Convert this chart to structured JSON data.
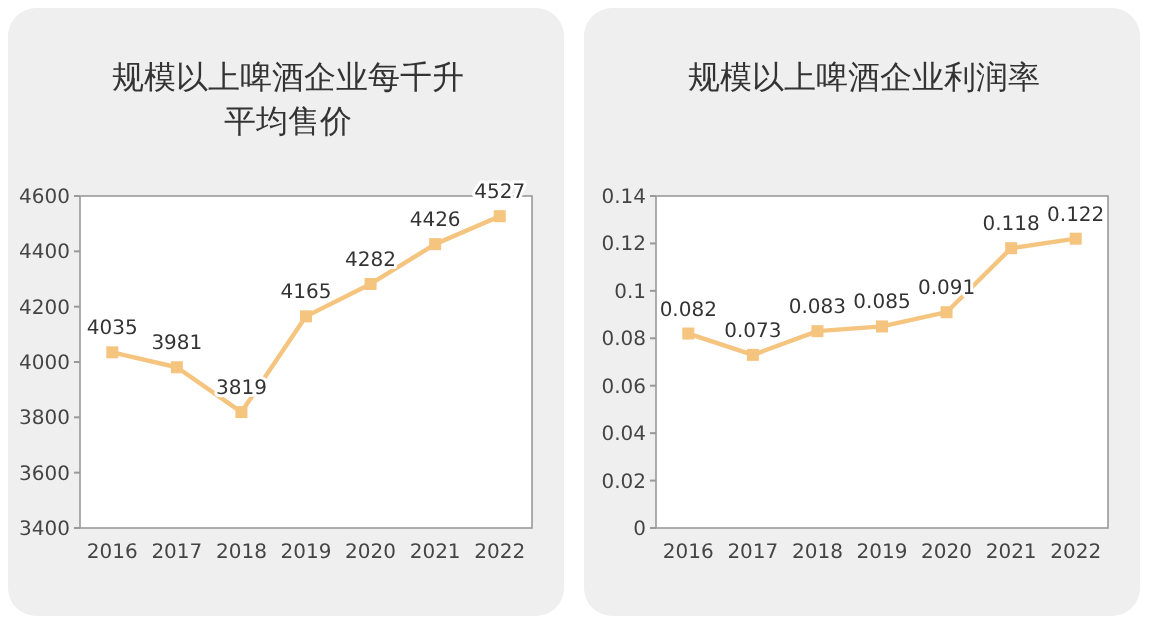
{
  "chart_data": [
    {
      "type": "line",
      "title": "规模以上啤酒企业每千升平均售价",
      "categories": [
        "2016",
        "2017",
        "2018",
        "2019",
        "2020",
        "2021",
        "2022"
      ],
      "series": [
        {
          "color": "#f5c47f",
          "values": [
            4035,
            3981,
            3819,
            4165,
            4282,
            4426,
            4527
          ]
        }
      ],
      "ylim": [
        3400,
        4600
      ],
      "yticks": [
        3400,
        3600,
        3800,
        4000,
        4200,
        4400,
        4600
      ],
      "data_labels": true,
      "marker": "square",
      "grid": false
    },
    {
      "type": "line",
      "title": "规模以上啤酒企业利润率",
      "categories": [
        "2016",
        "2017",
        "2018",
        "2019",
        "2020",
        "2021",
        "2022"
      ],
      "series": [
        {
          "color": "#f5c47f",
          "values": [
            0.082,
            0.073,
            0.083,
            0.085,
            0.091,
            0.118,
            0.122
          ]
        }
      ],
      "ylim": [
        0,
        0.14
      ],
      "yticks": [
        0,
        0.02,
        0.04,
        0.06,
        0.08,
        0.1,
        0.12,
        0.14
      ],
      "data_labels": true,
      "marker": "square",
      "grid": false
    }
  ]
}
